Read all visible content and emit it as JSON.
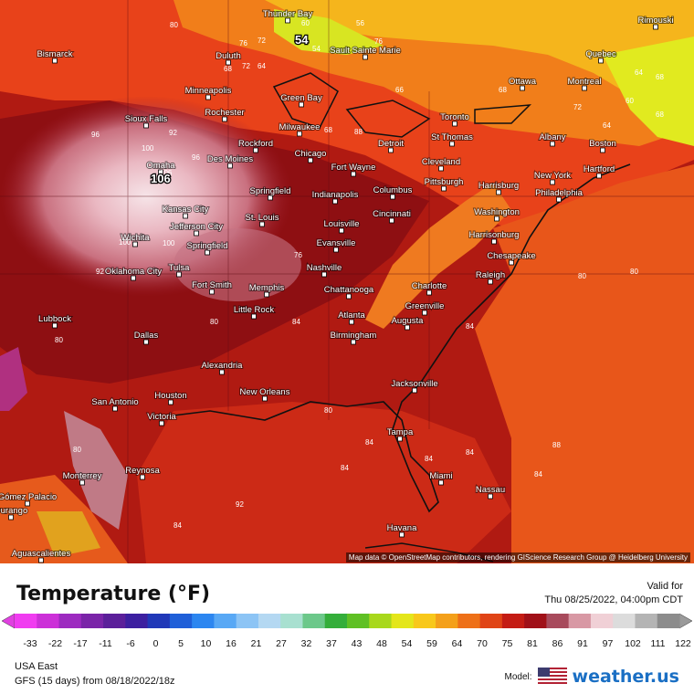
{
  "legend": {
    "title": "Temperature (°F)",
    "valid_label": "Valid for",
    "valid_time": "Thu 08/25/2022, 04:00pm CDT",
    "ticks": [
      "-33",
      "-22",
      "-17",
      "-11",
      "-6",
      "0",
      "5",
      "10",
      "16",
      "21",
      "27",
      "32",
      "37",
      "43",
      "48",
      "54",
      "59",
      "64",
      "70",
      "75",
      "81",
      "86",
      "91",
      "97",
      "102",
      "111",
      "122"
    ]
  },
  "footer": {
    "region": "USA East",
    "run": "GFS (15 days) from  08/18/2022/18z",
    "model_label": "Model:",
    "brand": "weather.us"
  },
  "attribution": "Map data © OpenStreetMap contributors, rendering GIScience Research Group @ Heidelberg University",
  "map": {
    "cities": [
      {
        "name": "Thunder Bay"
      },
      {
        "name": "Bismarck"
      },
      {
        "name": "Duluth"
      },
      {
        "name": "Sault Sainte Marie"
      },
      {
        "name": "Rimouski"
      },
      {
        "name": "Quebec"
      },
      {
        "name": "Ottawa"
      },
      {
        "name": "Montreal"
      },
      {
        "name": "Minneapolis"
      },
      {
        "name": "Green Bay"
      },
      {
        "name": "Rochester"
      },
      {
        "name": "Sioux Falls"
      },
      {
        "name": "Milwaukee"
      },
      {
        "name": "Toronto"
      },
      {
        "name": "Albany"
      },
      {
        "name": "Boston"
      },
      {
        "name": "Rockford"
      },
      {
        "name": "Chicago"
      },
      {
        "name": "Detroit"
      },
      {
        "name": "St Thomas"
      },
      {
        "name": "Omaha"
      },
      {
        "name": "Des Moines"
      },
      {
        "name": "Fort Wayne"
      },
      {
        "name": "Cleveland"
      },
      {
        "name": "Hartford"
      },
      {
        "name": "New York"
      },
      {
        "name": "Springfield"
      },
      {
        "name": "Indianapolis"
      },
      {
        "name": "Columbus"
      },
      {
        "name": "Pittsburgh"
      },
      {
        "name": "Harrisburg"
      },
      {
        "name": "Philadelphia"
      },
      {
        "name": "Kansas City"
      },
      {
        "name": "St. Louis"
      },
      {
        "name": "Jefferson City"
      },
      {
        "name": "Louisville"
      },
      {
        "name": "Cincinnati"
      },
      {
        "name": "Washington"
      },
      {
        "name": "Wichita"
      },
      {
        "name": "Springfield"
      },
      {
        "name": "Evansville"
      },
      {
        "name": "Harrisonburg"
      },
      {
        "name": "Chesapeake"
      },
      {
        "name": "Oklahoma City"
      },
      {
        "name": "Tulsa"
      },
      {
        "name": "Nashville"
      },
      {
        "name": "Raleigh"
      },
      {
        "name": "Fort Smith"
      },
      {
        "name": "Memphis"
      },
      {
        "name": "Chattanooga"
      },
      {
        "name": "Charlotte"
      },
      {
        "name": "Little Rock"
      },
      {
        "name": "Greenville"
      },
      {
        "name": "Atlanta"
      },
      {
        "name": "Augusta"
      },
      {
        "name": "Lubbock"
      },
      {
        "name": "Birmingham"
      },
      {
        "name": "Dallas"
      },
      {
        "name": "Alexandria"
      },
      {
        "name": "New Orleans"
      },
      {
        "name": "Jacksonville"
      },
      {
        "name": "Houston"
      },
      {
        "name": "San Antonio"
      },
      {
        "name": "Victoria"
      },
      {
        "name": "Tampa"
      },
      {
        "name": "Monterrey"
      },
      {
        "name": "Reynosa"
      },
      {
        "name": "Miami"
      },
      {
        "name": "Nassau"
      },
      {
        "name": "Gómez Palacio"
      },
      {
        "name": "Durango"
      },
      {
        "name": "Havana"
      },
      {
        "name": "Aguascalientes"
      }
    ],
    "contour_values": [
      "80",
      "76",
      "72",
      "60",
      "54",
      "56",
      "76",
      "72",
      "64",
      "68",
      "66",
      "68",
      "64",
      "68",
      "72",
      "64",
      "68",
      "60",
      "68",
      "88",
      "96",
      "92",
      "100",
      "106",
      "100",
      "92",
      "100",
      "80",
      "76",
      "80",
      "84",
      "80",
      "84",
      "84",
      "84",
      "84",
      "84",
      "92",
      "80",
      "96",
      "84",
      "88",
      "80",
      "84",
      "80"
    ],
    "highlight_value": "106",
    "lake_value": "54"
  }
}
